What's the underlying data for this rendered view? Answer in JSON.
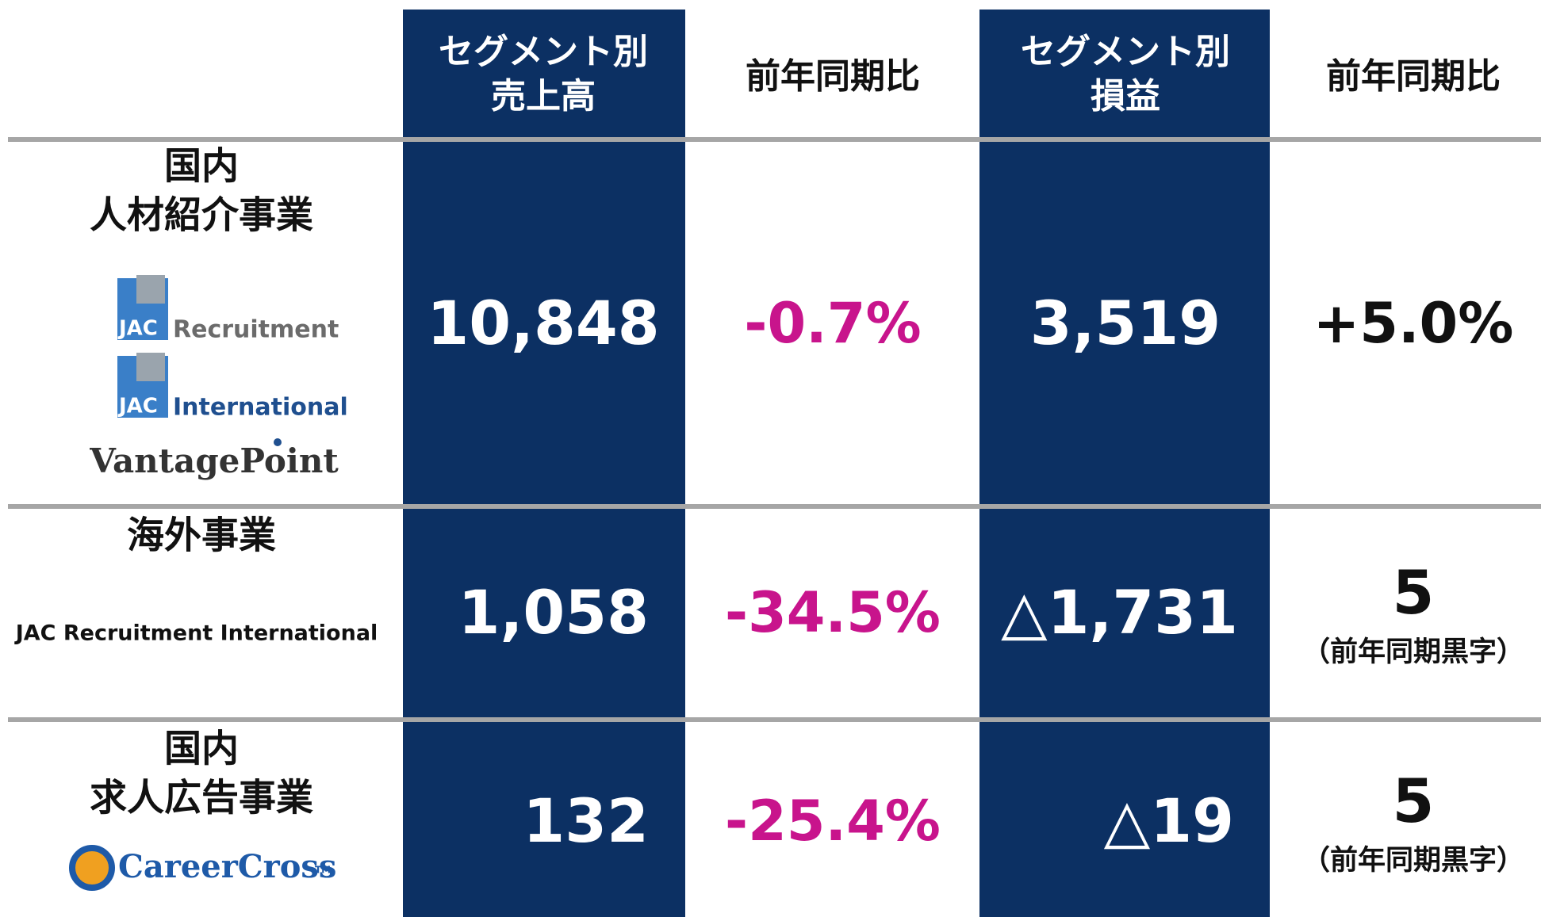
{
  "header": {
    "columns": [
      [
        "セグメント別",
        "売上高"
      ],
      [
        "前年同期比"
      ],
      [
        "セグメント別",
        "損益"
      ],
      [
        "前年同期比"
      ]
    ]
  },
  "rows": [
    {
      "name": [
        "国内",
        "人材紹介事業"
      ],
      "logos": [
        {
          "mark": "JAC",
          "text": "Recruitment"
        },
        {
          "mark": "JAC",
          "text": "International"
        },
        {
          "text": "VantagePoint"
        }
      ],
      "sales": "10,848",
      "sales_yoy": "-0.7%",
      "profit": "3,519",
      "profit_yoy": "+5.0%"
    },
    {
      "name": [
        "海外事業"
      ],
      "subtitle": "JAC Recruitment International",
      "sales": "1,058",
      "sales_yoy": "-34.5%",
      "profit": "△1,731",
      "profit_yoy": "5",
      "profit_note": "（前年同期黒字）"
    },
    {
      "name": [
        "国内",
        "求人広告事業"
      ],
      "logos": [
        {
          "text": "CareerCross",
          "tm": "TM"
        }
      ],
      "sales": "132",
      "sales_yoy": "-25.4%",
      "profit": "△19",
      "profit_yoy": "5",
      "profit_note": "（前年同期黒字）"
    }
  ]
}
